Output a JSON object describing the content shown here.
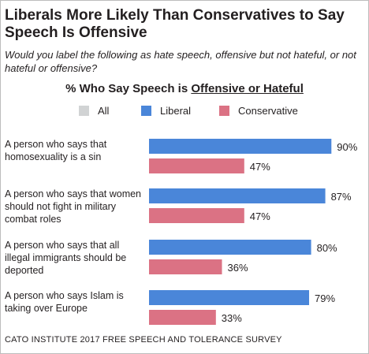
{
  "title": "Liberals More Likely Than Conservatives to Say Speech Is Offensive",
  "subtitle": "Would you label the following as hate speech, offensive but not hateful, or not hateful or offensive?",
  "heading_prefix": "% Who Say Speech is ",
  "heading_underlined": "Offensive or Hateful",
  "source": "CATO INSTITUTE 2017 FREE SPEECH AND TOLERANCE SURVEY",
  "colors": {
    "all": "#d1d3d4",
    "liberal": "#4a86d9",
    "conservative": "#db7284"
  },
  "chart_data": {
    "type": "bar",
    "orientation": "horizontal",
    "title": "% Who Say Speech is Offensive or Hateful",
    "legend": [
      "All",
      "Liberal",
      "Conservative"
    ],
    "categories": [
      [
        "A person who says that",
        "homosexuality is a sin"
      ],
      [
        "A person who says that women",
        "should not fight in military",
        "combat roles"
      ],
      [
        "A person who says that all",
        "illegal immigrants should be",
        "deported"
      ],
      [
        "A person who says Islam is",
        "taking over Europe"
      ]
    ],
    "series": [
      {
        "name": "Liberal",
        "values": [
          90,
          87,
          80,
          79
        ],
        "labels": [
          "90%",
          "87%",
          "80%",
          "79%"
        ]
      },
      {
        "name": "Conservative",
        "values": [
          47,
          47,
          36,
          33
        ],
        "labels": [
          "47%",
          "47%",
          "36%",
          "33%"
        ]
      }
    ],
    "xlim": [
      0,
      100
    ],
    "unit": "%"
  }
}
